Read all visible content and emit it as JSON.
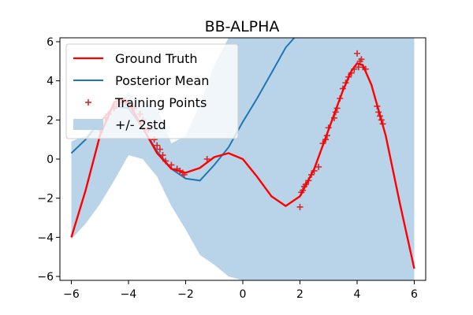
{
  "chart_data": {
    "type": "line",
    "title": "BB-ALPHA",
    "xlim": [
      -6.4,
      6.4
    ],
    "ylim": [
      -6.2,
      6.2
    ],
    "x_ticks": [
      -6,
      -4,
      -2,
      0,
      2,
      4,
      6
    ],
    "y_ticks": [
      -6,
      -4,
      -2,
      0,
      2,
      4,
      6
    ],
    "grid": false,
    "legend_position": "upper-left",
    "colors": {
      "ground_truth": "#ff0000",
      "posterior_mean": "#1f77b4",
      "training_points": "#d62728",
      "band": "#b9d3e8"
    },
    "series": [
      {
        "name": "Ground Truth",
        "x": [
          -6,
          -5.5,
          -5,
          -4.5,
          -4.2,
          -4,
          -3.5,
          -3,
          -2.5,
          -2,
          -1.5,
          -1,
          -0.5,
          0,
          0.5,
          1,
          1.5,
          2,
          2.5,
          3,
          3.5,
          3.8,
          4,
          4.2,
          4.5,
          5,
          5.5,
          6
        ],
        "y": [
          -4.0,
          -1.6,
          1.2,
          2.9,
          3.1,
          2.85,
          1.6,
          0.3,
          -0.5,
          -0.7,
          -0.45,
          0.1,
          0.3,
          0.0,
          -0.9,
          -1.9,
          -2.4,
          -1.9,
          -0.5,
          1.5,
          3.5,
          4.5,
          4.9,
          4.8,
          3.8,
          1.2,
          -2.3,
          -5.6
        ]
      },
      {
        "name": "Posterior Mean",
        "x": [
          -6,
          -5.5,
          -5,
          -4.5,
          -4,
          -3.5,
          -3,
          -2.5,
          -2,
          -1.5,
          -1,
          -0.5,
          0,
          0.5,
          1,
          1.5,
          1.8
        ],
        "y": [
          0.3,
          1.0,
          1.9,
          2.7,
          2.6,
          1.6,
          0.4,
          -0.5,
          -1.0,
          -1.1,
          -0.3,
          0.6,
          1.9,
          3.1,
          4.4,
          5.7,
          6.2
        ]
      },
      {
        "name": "Training Points",
        "x": [
          -5.0,
          -4.8,
          -4.7,
          -4.5,
          -4.4,
          -4.3,
          -4.2,
          -4.1,
          -4.0,
          -3.8,
          -3.6,
          -3.5,
          -3.3,
          -3.1,
          -3.0,
          -2.9,
          -2.8,
          -2.7,
          -2.5,
          -2.3,
          -2.2,
          -2.1,
          -2.05,
          -1.25,
          2.0,
          2.05,
          2.1,
          2.15,
          2.2,
          2.3,
          2.4,
          2.5,
          2.65,
          2.8,
          2.9,
          2.95,
          3.0,
          3.2,
          3.25,
          3.3,
          3.4,
          3.5,
          3.6,
          3.7,
          3.8,
          3.9,
          4.0,
          4.05,
          4.1,
          4.15,
          4.2,
          4.3,
          4.7,
          4.75,
          4.8,
          4.85,
          4.9
        ],
        "y": [
          1.5,
          2.1,
          2.3,
          2.6,
          2.8,
          2.9,
          3.0,
          2.9,
          2.8,
          2.6,
          2.3,
          2.0,
          1.5,
          1.0,
          0.7,
          0.5,
          0.2,
          -0.1,
          -0.3,
          -0.5,
          -0.6,
          -0.7,
          -0.8,
          0.0,
          -2.45,
          -1.7,
          -1.6,
          -1.4,
          -1.3,
          -1.1,
          -0.8,
          -0.6,
          -0.4,
          0.8,
          1.0,
          1.2,
          1.6,
          2.1,
          2.4,
          2.6,
          3.1,
          3.6,
          3.9,
          4.2,
          4.4,
          4.6,
          5.4,
          4.7,
          5.0,
          5.1,
          4.7,
          4.6,
          2.7,
          2.4,
          2.2,
          2.0,
          1.8
        ]
      },
      {
        "name": "+/- 2std",
        "x": [
          -6,
          -5.5,
          -5,
          -4.5,
          -4,
          -3.5,
          -3,
          -2.5,
          -2,
          -1.5,
          -1,
          -0.5,
          0,
          0.5,
          1,
          1.5,
          2,
          2.5,
          3,
          3.5,
          4,
          4.5,
          5,
          5.5,
          6
        ],
        "lower": [
          -4.1,
          -3.3,
          -2.3,
          -1.1,
          0.2,
          0.0,
          -0.9,
          -2.4,
          -3.6,
          -4.9,
          -5.4,
          -6.0,
          -6.2,
          -6.2,
          -6.2,
          -6.2,
          -6.2,
          -6.2,
          -6.2,
          -6.2,
          -6.2,
          -6.2,
          -6.2,
          -6.2,
          -6.2
        ],
        "upper": [
          0.9,
          1.2,
          1.9,
          2.6,
          3.4,
          2.9,
          2.6,
          0.8,
          1.2,
          2.8,
          4.8,
          6.2,
          6.2,
          6.2,
          6.2,
          6.2,
          6.2,
          6.2,
          6.2,
          6.2,
          6.2,
          6.2,
          6.2,
          6.2,
          6.2
        ]
      }
    ]
  }
}
